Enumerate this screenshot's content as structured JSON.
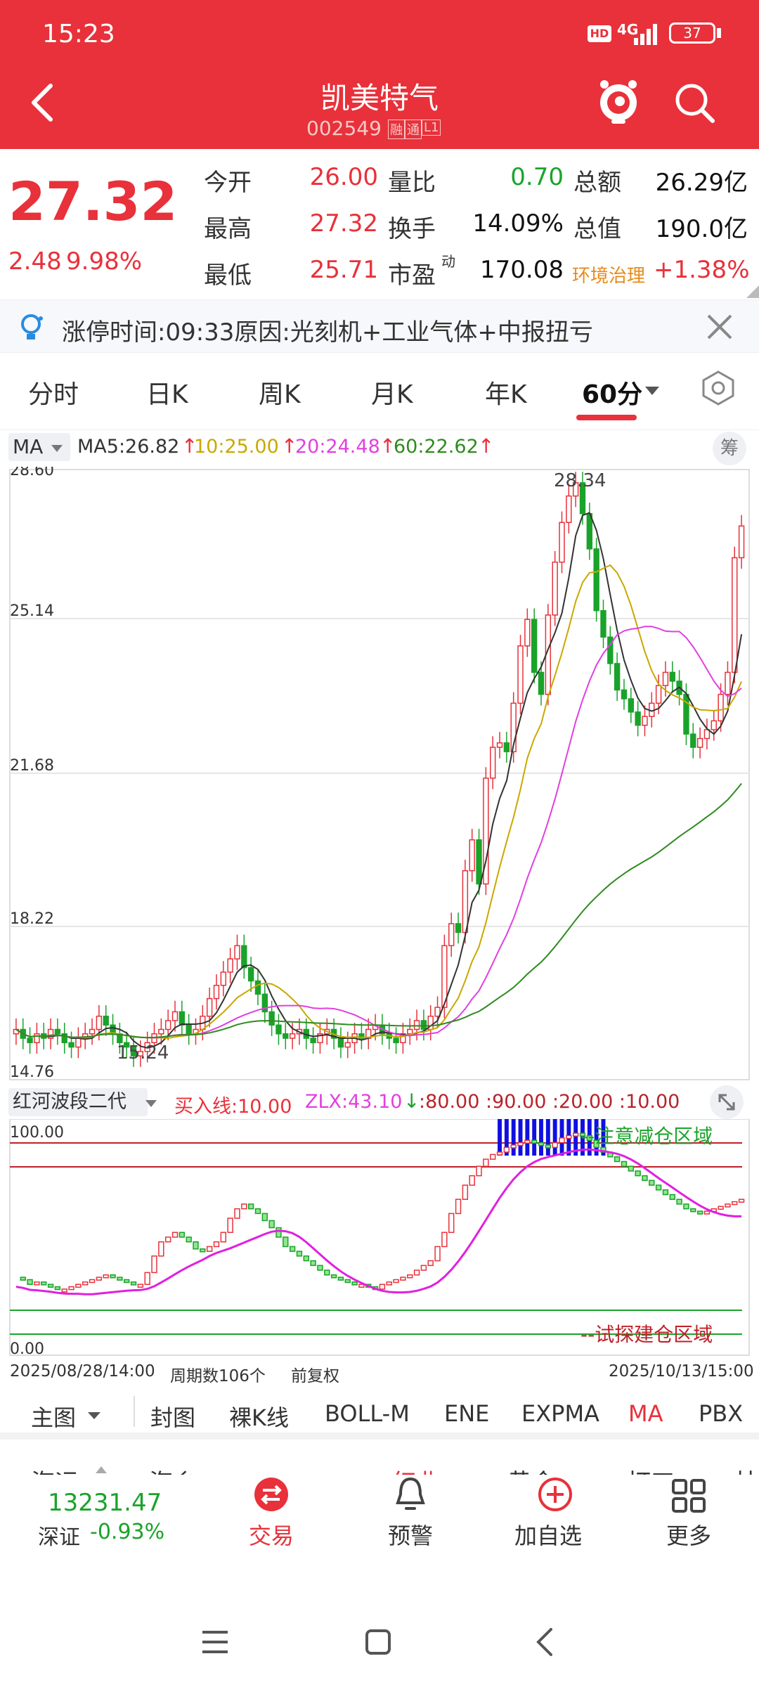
{
  "status": {
    "time": "15:23",
    "hd": "HD",
    "network": "4G",
    "battery": "37"
  },
  "header": {
    "title": "凯美特气",
    "code": "002549",
    "badge_rong": "融",
    "badge_tong": "通",
    "badge_l1": "L1"
  },
  "quote": {
    "price": "27.32",
    "change": "2.48",
    "change_pct": "9.98%",
    "rows": [
      {
        "l1": "今开",
        "v1": "26.00",
        "l2": "量比",
        "v2": "0.70",
        "l3": "总额",
        "v3": "26.29亿"
      },
      {
        "l1": "最高",
        "v1": "27.32",
        "l2": "换手",
        "v2": "14.09%",
        "l3": "总值",
        "v3": "190.0亿"
      },
      {
        "l1": "最低",
        "v1": "25.71",
        "l2": "市盈",
        "v2": "170.08",
        "l3": "环境治理",
        "v3": "+1.38%"
      }
    ],
    "pe_sup": "动"
  },
  "notice": {
    "text": "涨停时间:09:33原因:光刻机+工业气体+中报扭亏"
  },
  "tabs": [
    "分时",
    "日K",
    "周K",
    "月K",
    "年K",
    "60分"
  ],
  "ma_bar": {
    "select": "MA",
    "ma5": "MA5:26.82",
    "ma10": "10:25.00",
    "ma20": "20:24.48",
    "ma60": "60:22.62",
    "chip": "筹"
  },
  "colors": {
    "ma5": "#333333",
    "ma10": "#c9a800",
    "ma20": "#e040e0",
    "ma60": "#2e8b1e",
    "up": "#e8313a",
    "down": "#1aa32a"
  },
  "chart_data": [
    {
      "type": "candlestick",
      "title": "",
      "y_ticks": [
        "28.60",
        "25.14",
        "21.68",
        "18.22",
        "14.76"
      ],
      "ylim": [
        14.76,
        28.6
      ],
      "high_label": "28.34",
      "low_label": "15.24",
      "x_range": [
        "2025/08/28/14:00",
        "2025/10/13/15:00"
      ],
      "closes": [
        15.9,
        15.7,
        15.6,
        15.8,
        15.7,
        15.9,
        15.8,
        15.6,
        15.5,
        15.7,
        15.8,
        15.9,
        16.2,
        16.0,
        15.8,
        15.6,
        15.5,
        15.3,
        15.4,
        15.6,
        15.8,
        15.9,
        16.1,
        16.3,
        16.0,
        15.8,
        15.9,
        16.2,
        16.6,
        16.9,
        17.2,
        17.5,
        17.8,
        17.3,
        17.0,
        16.7,
        16.3,
        16.0,
        15.8,
        15.7,
        15.8,
        15.9,
        15.7,
        15.6,
        15.8,
        15.9,
        15.7,
        15.5,
        15.6,
        15.8,
        15.7,
        15.9,
        16.0,
        15.8,
        15.7,
        15.6,
        15.8,
        15.9,
        16.1,
        15.9,
        16.2,
        16.4,
        17.8,
        18.3,
        18.1,
        19.5,
        20.2,
        19.2,
        21.6,
        22.3,
        22.4,
        22.2,
        23.3,
        24.6,
        25.2,
        24.0,
        23.5,
        25.3,
        26.5,
        27.4,
        28.0,
        28.3,
        27.6,
        26.8,
        25.4,
        24.8,
        24.2,
        23.6,
        23.4,
        23.1,
        22.8,
        23.0,
        23.3,
        23.7,
        24.0,
        23.8,
        23.5,
        22.6,
        22.3,
        22.5,
        22.7,
        22.9,
        23.5,
        24.0,
        26.6,
        27.32
      ]
    },
    {
      "type": "line",
      "title": "红河波段二代",
      "buy_line": "买入线:10.00",
      "zlx": "ZLX:43.10",
      "levels": ":80.00 :90.00 :20.00 :10.00",
      "ylim": [
        0,
        100
      ],
      "y_ticks": [
        "100.00",
        "0.00"
      ],
      "reduce_label": "--注意减仓区域",
      "build_label": "--试探建仓区域",
      "period_label": "周期数106个",
      "fq_label": "前复权",
      "osc": [
        33,
        32,
        30,
        31,
        30,
        29,
        28,
        28,
        29,
        30,
        31,
        32,
        33,
        34,
        33,
        32,
        31,
        30,
        30,
        35,
        42,
        48,
        50,
        52,
        50,
        48,
        45,
        44,
        46,
        48,
        52,
        58,
        62,
        64,
        62,
        60,
        57,
        54,
        50,
        46,
        44,
        42,
        40,
        38,
        36,
        34,
        33,
        32,
        31,
        30,
        30,
        29,
        28,
        30,
        31,
        32,
        33,
        34,
        36,
        38,
        40,
        46,
        52,
        60,
        66,
        72,
        76,
        80,
        83,
        85,
        86,
        88,
        89,
        90,
        91,
        90,
        89,
        88,
        90,
        92,
        93,
        94,
        93,
        91,
        88,
        86,
        84,
        82,
        80,
        78,
        76,
        74,
        72,
        70,
        68,
        66,
        64,
        62,
        61,
        60,
        61,
        62,
        63,
        64,
        65,
        66
      ]
    }
  ],
  "indicators": [
    "主图",
    "封图",
    "裸K线",
    "BOLL-M",
    "ENE",
    "EXPMA",
    "MA",
    "PBX"
  ],
  "bottom": {
    "index_value": "13231.47",
    "index_name": "深证",
    "index_change": "-0.93%",
    "trade": "交易",
    "alert": "预警",
    "add": "加自选",
    "more": "更多"
  },
  "partial_row": [
    "海运",
    "海乡",
    "红业",
    "黄金",
    "打工",
    "林"
  ]
}
